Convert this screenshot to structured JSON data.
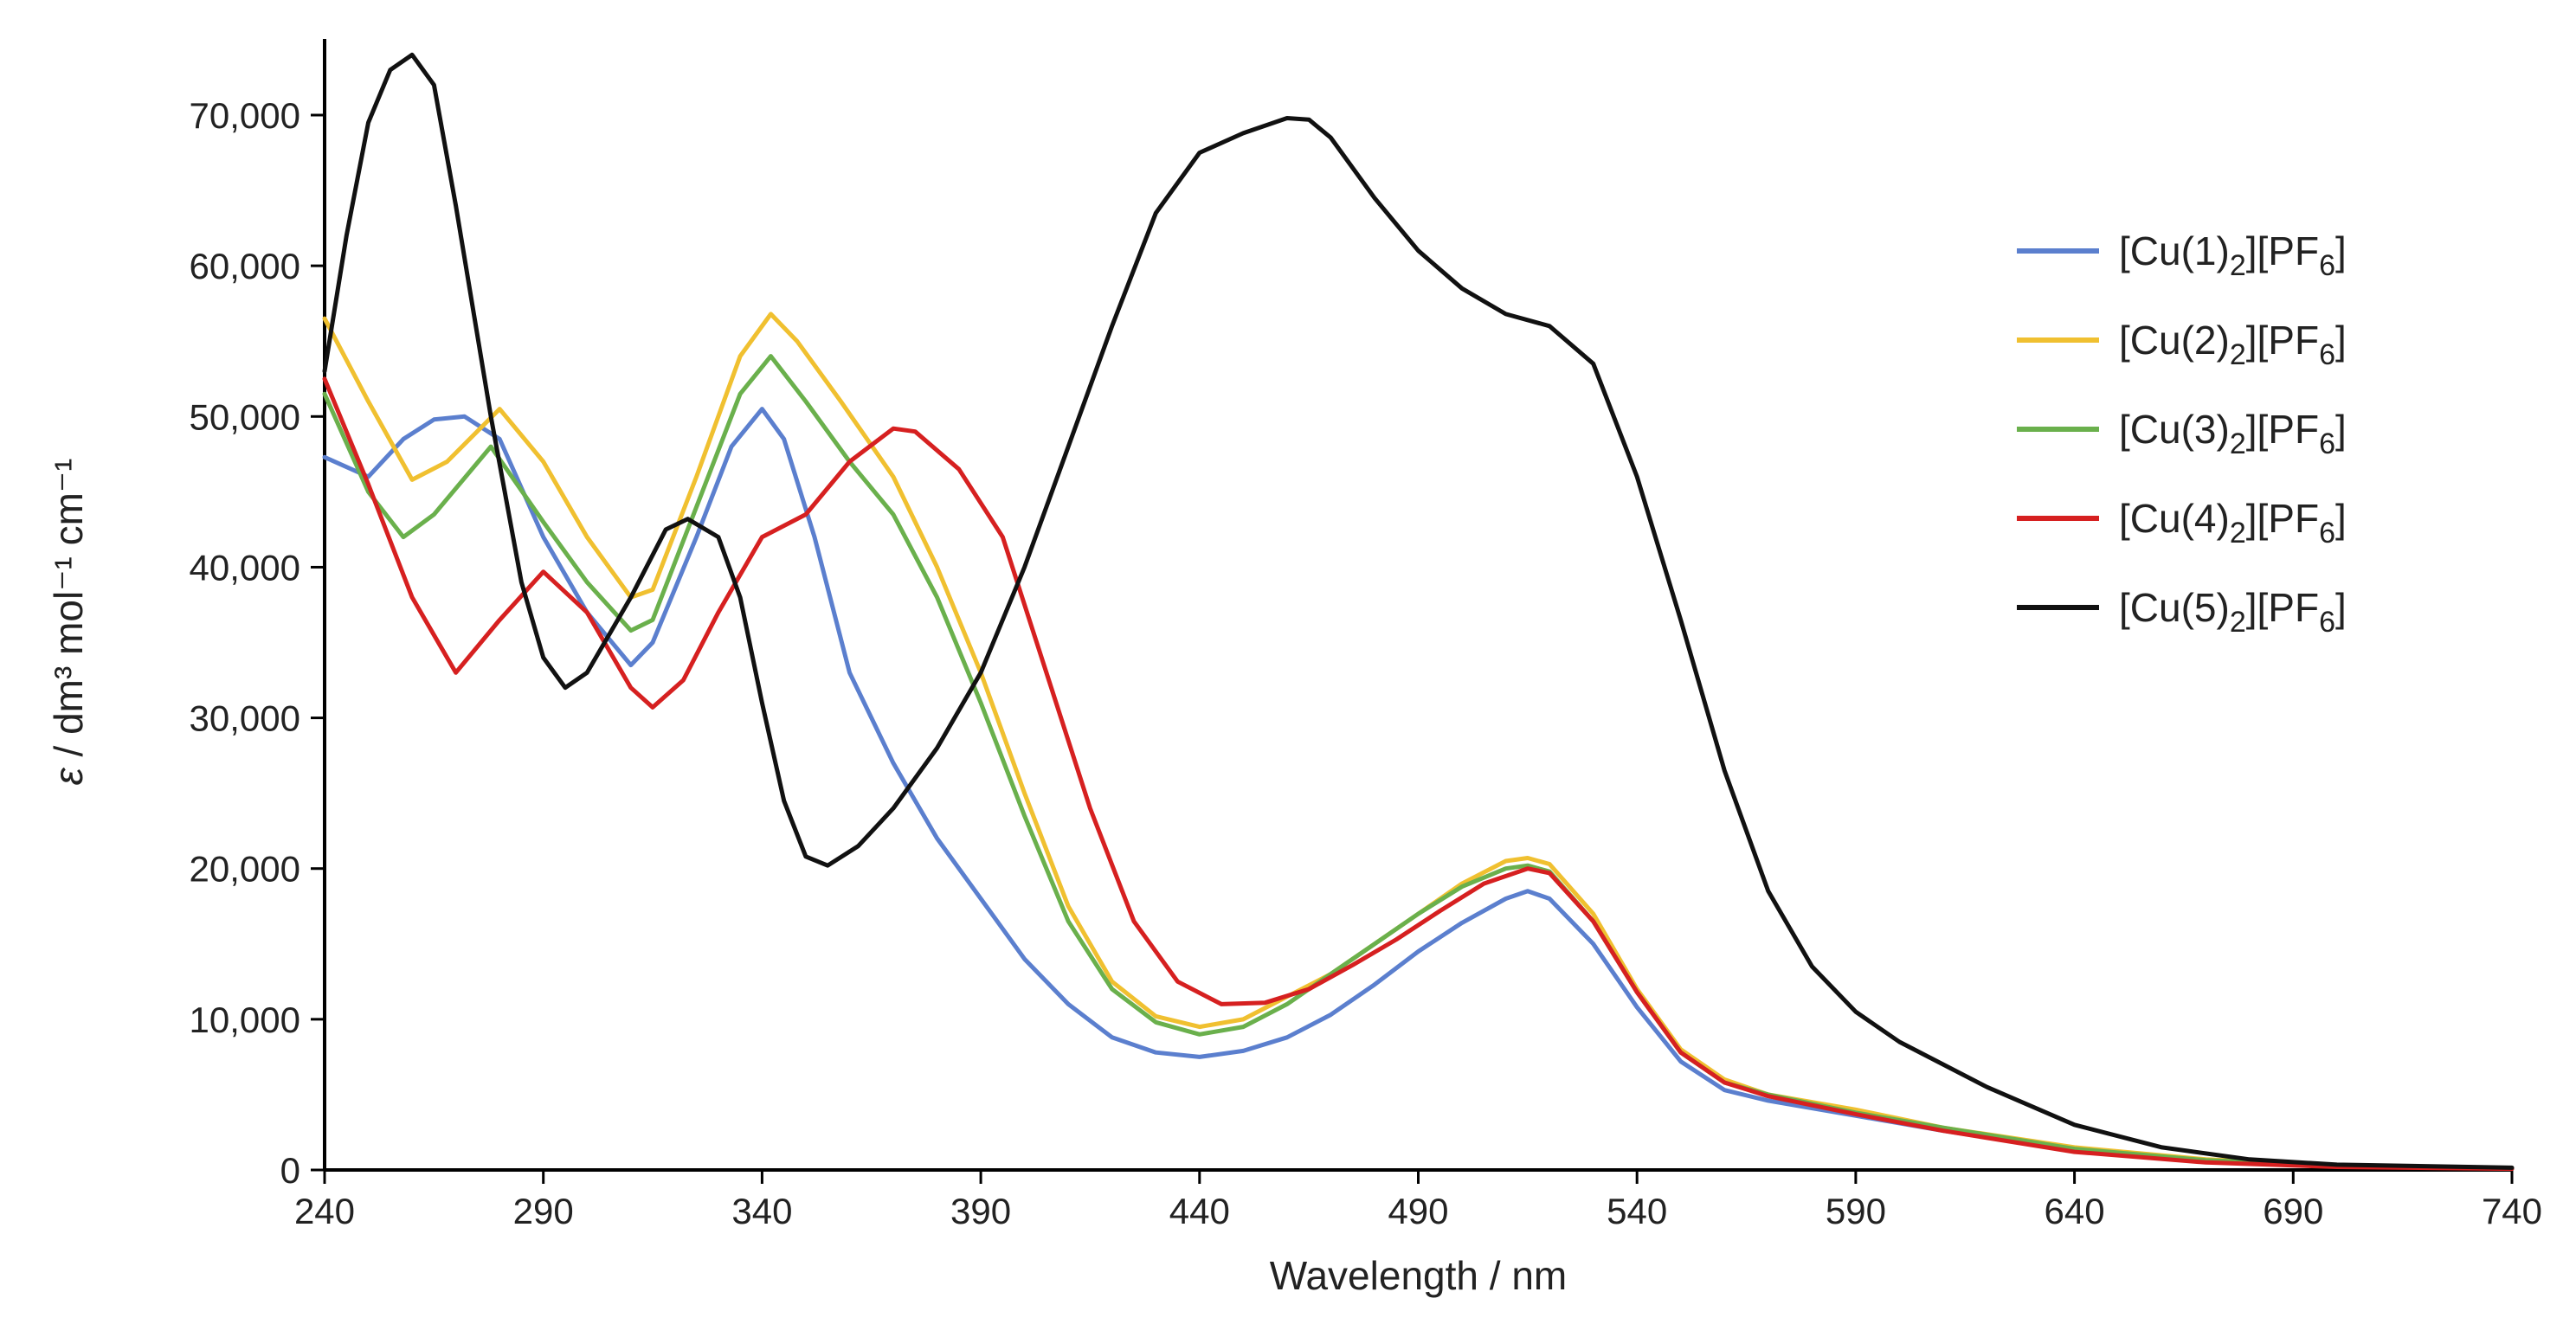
{
  "chart_data": {
    "type": "line",
    "title": "",
    "xlabel": "Wavelength / nm",
    "ylabel_symbol": "ε",
    "ylabel_text": " / dm³ mol⁻¹ cm⁻¹",
    "xlim": [
      240,
      740
    ],
    "ylim": [
      0,
      75000
    ],
    "x_ticks": [
      240,
      290,
      340,
      390,
      440,
      490,
      540,
      590,
      640,
      690,
      740
    ],
    "x_tick_labels": [
      "240",
      "290",
      "340",
      "390",
      "440",
      "490",
      "540",
      "590",
      "640",
      "690",
      "740"
    ],
    "y_ticks": [
      0,
      10000,
      20000,
      30000,
      40000,
      50000,
      60000,
      70000
    ],
    "y_tick_labels": [
      "0",
      "10,000",
      "20,000",
      "30,000",
      "40,000",
      "50,000",
      "60,000",
      "70,000"
    ],
    "grid": false,
    "legend_position": "right",
    "series": [
      {
        "name": "[Cu(1)2][PF6]",
        "label_main": "[Cu(1)",
        "label_sub1": "2",
        "label_mid": "][PF",
        "label_sub2": "6",
        "label_end": "]",
        "color": "#5b7fce",
        "points": [
          [
            240,
            47300
          ],
          [
            250,
            46000
          ],
          [
            258,
            48500
          ],
          [
            265,
            49800
          ],
          [
            272,
            50000
          ],
          [
            280,
            48500
          ],
          [
            290,
            42000
          ],
          [
            300,
            37000
          ],
          [
            310,
            33500
          ],
          [
            315,
            35000
          ],
          [
            325,
            42000
          ],
          [
            333,
            48000
          ],
          [
            340,
            50500
          ],
          [
            345,
            48500
          ],
          [
            352,
            42000
          ],
          [
            360,
            33000
          ],
          [
            370,
            27000
          ],
          [
            380,
            22000
          ],
          [
            390,
            18000
          ],
          [
            400,
            14000
          ],
          [
            410,
            11000
          ],
          [
            420,
            8800
          ],
          [
            430,
            7800
          ],
          [
            440,
            7500
          ],
          [
            450,
            7900
          ],
          [
            460,
            8800
          ],
          [
            470,
            10300
          ],
          [
            480,
            12300
          ],
          [
            490,
            14500
          ],
          [
            500,
            16400
          ],
          [
            510,
            18000
          ],
          [
            515,
            18500
          ],
          [
            520,
            18000
          ],
          [
            530,
            15000
          ],
          [
            540,
            10800
          ],
          [
            550,
            7200
          ],
          [
            560,
            5300
          ],
          [
            570,
            4600
          ],
          [
            590,
            3600
          ],
          [
            610,
            2600
          ],
          [
            640,
            1300
          ],
          [
            670,
            600
          ],
          [
            700,
            250
          ],
          [
            740,
            100
          ]
        ]
      },
      {
        "name": "[Cu(2)2][PF6]",
        "label_main": "[Cu(2)",
        "label_sub1": "2",
        "label_mid": "][PF",
        "label_sub2": "6",
        "label_end": "]",
        "color": "#f0c030",
        "points": [
          [
            240,
            56500
          ],
          [
            250,
            51000
          ],
          [
            260,
            45800
          ],
          [
            268,
            47000
          ],
          [
            280,
            50500
          ],
          [
            290,
            47000
          ],
          [
            300,
            42000
          ],
          [
            310,
            38000
          ],
          [
            315,
            38500
          ],
          [
            325,
            46000
          ],
          [
            335,
            54000
          ],
          [
            342,
            56800
          ],
          [
            348,
            55000
          ],
          [
            358,
            51000
          ],
          [
            370,
            46000
          ],
          [
            380,
            40000
          ],
          [
            390,
            33000
          ],
          [
            400,
            25000
          ],
          [
            410,
            17500
          ],
          [
            420,
            12500
          ],
          [
            430,
            10200
          ],
          [
            440,
            9500
          ],
          [
            450,
            10000
          ],
          [
            460,
            11500
          ],
          [
            470,
            13000
          ],
          [
            480,
            15000
          ],
          [
            490,
            17000
          ],
          [
            500,
            19000
          ],
          [
            510,
            20500
          ],
          [
            515,
            20700
          ],
          [
            520,
            20300
          ],
          [
            530,
            17000
          ],
          [
            540,
            12000
          ],
          [
            550,
            8000
          ],
          [
            560,
            6000
          ],
          [
            570,
            5000
          ],
          [
            590,
            4000
          ],
          [
            610,
            2800
          ],
          [
            640,
            1500
          ],
          [
            670,
            700
          ],
          [
            700,
            300
          ],
          [
            740,
            100
          ]
        ]
      },
      {
        "name": "[Cu(3)2][PF6]",
        "label_main": "[Cu(3)",
        "label_sub1": "2",
        "label_mid": "][PF",
        "label_sub2": "6",
        "label_end": "]",
        "color": "#6ab04c",
        "points": [
          [
            240,
            51500
          ],
          [
            250,
            45000
          ],
          [
            258,
            42000
          ],
          [
            265,
            43500
          ],
          [
            278,
            48000
          ],
          [
            290,
            43000
          ],
          [
            300,
            39000
          ],
          [
            310,
            35800
          ],
          [
            315,
            36500
          ],
          [
            325,
            44000
          ],
          [
            335,
            51500
          ],
          [
            342,
            54000
          ],
          [
            350,
            51000
          ],
          [
            360,
            47000
          ],
          [
            370,
            43500
          ],
          [
            380,
            38000
          ],
          [
            390,
            31000
          ],
          [
            400,
            23500
          ],
          [
            410,
            16500
          ],
          [
            420,
            12000
          ],
          [
            430,
            9800
          ],
          [
            440,
            9000
          ],
          [
            450,
            9500
          ],
          [
            460,
            11000
          ],
          [
            470,
            13000
          ],
          [
            480,
            15000
          ],
          [
            490,
            17000
          ],
          [
            500,
            18800
          ],
          [
            510,
            20000
          ],
          [
            515,
            20200
          ],
          [
            520,
            19800
          ],
          [
            530,
            16500
          ],
          [
            540,
            11800
          ],
          [
            550,
            7800
          ],
          [
            560,
            5800
          ],
          [
            570,
            5000
          ],
          [
            590,
            3800
          ],
          [
            610,
            2800
          ],
          [
            640,
            1400
          ],
          [
            670,
            650
          ],
          [
            700,
            280
          ],
          [
            740,
            100
          ]
        ]
      },
      {
        "name": "[Cu(4)2][PF6]",
        "label_main": "[Cu(4)",
        "label_sub1": "2",
        "label_mid": "][PF",
        "label_sub2": "6",
        "label_end": "]",
        "color": "#d62020",
        "points": [
          [
            240,
            52500
          ],
          [
            250,
            45500
          ],
          [
            260,
            38000
          ],
          [
            270,
            33000
          ],
          [
            280,
            36500
          ],
          [
            290,
            39700
          ],
          [
            300,
            37000
          ],
          [
            310,
            32000
          ],
          [
            315,
            30700
          ],
          [
            322,
            32500
          ],
          [
            330,
            37000
          ],
          [
            340,
            42000
          ],
          [
            350,
            43500
          ],
          [
            360,
            47000
          ],
          [
            370,
            49200
          ],
          [
            375,
            49000
          ],
          [
            385,
            46500
          ],
          [
            395,
            42000
          ],
          [
            405,
            33000
          ],
          [
            415,
            24000
          ],
          [
            425,
            16500
          ],
          [
            435,
            12500
          ],
          [
            445,
            11000
          ],
          [
            455,
            11100
          ],
          [
            465,
            12000
          ],
          [
            475,
            13600
          ],
          [
            485,
            15300
          ],
          [
            495,
            17200
          ],
          [
            505,
            19000
          ],
          [
            515,
            20000
          ],
          [
            520,
            19700
          ],
          [
            530,
            16500
          ],
          [
            540,
            11800
          ],
          [
            550,
            7800
          ],
          [
            560,
            5800
          ],
          [
            570,
            4900
          ],
          [
            590,
            3700
          ],
          [
            610,
            2600
          ],
          [
            640,
            1200
          ],
          [
            670,
            500
          ],
          [
            700,
            200
          ],
          [
            740,
            80
          ]
        ]
      },
      {
        "name": "[Cu(5)2][PF6]",
        "label_main": "[Cu(5)",
        "label_sub1": "2",
        "label_mid": "][PF",
        "label_sub2": "6",
        "label_end": "]",
        "color": "#111111",
        "points": [
          [
            240,
            53000
          ],
          [
            245,
            62000
          ],
          [
            250,
            69500
          ],
          [
            255,
            73000
          ],
          [
            260,
            74000
          ],
          [
            265,
            72000
          ],
          [
            270,
            64000
          ],
          [
            278,
            50000
          ],
          [
            285,
            39000
          ],
          [
            290,
            34000
          ],
          [
            295,
            32000
          ],
          [
            300,
            33000
          ],
          [
            310,
            38000
          ],
          [
            318,
            42500
          ],
          [
            323,
            43200
          ],
          [
            330,
            42000
          ],
          [
            335,
            38000
          ],
          [
            340,
            31000
          ],
          [
            345,
            24500
          ],
          [
            350,
            20800
          ],
          [
            355,
            20200
          ],
          [
            362,
            21500
          ],
          [
            370,
            24000
          ],
          [
            380,
            28000
          ],
          [
            390,
            33000
          ],
          [
            400,
            40000
          ],
          [
            410,
            48000
          ],
          [
            420,
            56000
          ],
          [
            430,
            63500
          ],
          [
            440,
            67500
          ],
          [
            450,
            68800
          ],
          [
            460,
            69800
          ],
          [
            465,
            69700
          ],
          [
            470,
            68500
          ],
          [
            480,
            64500
          ],
          [
            490,
            61000
          ],
          [
            500,
            58500
          ],
          [
            510,
            56800
          ],
          [
            520,
            56000
          ],
          [
            530,
            53500
          ],
          [
            540,
            46000
          ],
          [
            550,
            36500
          ],
          [
            560,
            26500
          ],
          [
            570,
            18500
          ],
          [
            580,
            13500
          ],
          [
            590,
            10500
          ],
          [
            600,
            8500
          ],
          [
            620,
            5500
          ],
          [
            640,
            3000
          ],
          [
            660,
            1500
          ],
          [
            680,
            700
          ],
          [
            700,
            350
          ],
          [
            740,
            150
          ]
        ]
      }
    ]
  }
}
